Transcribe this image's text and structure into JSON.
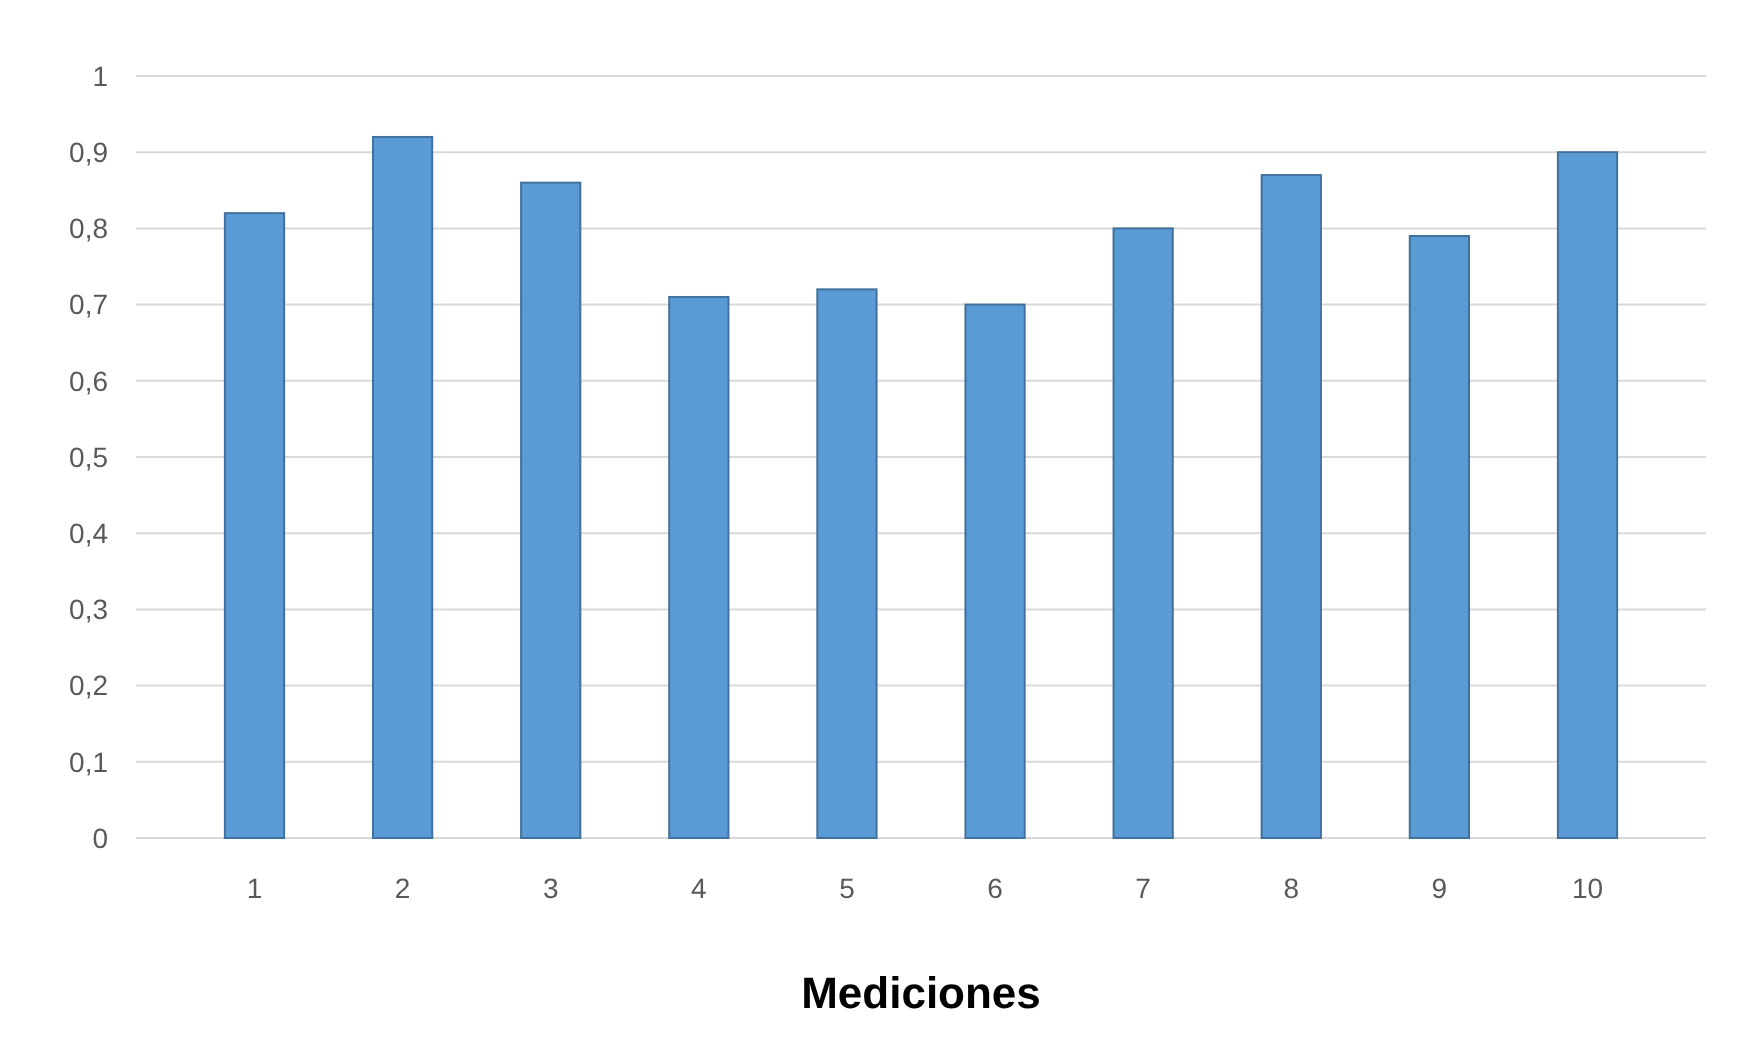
{
  "chart_data": {
    "type": "bar",
    "xlabel": "Mediciones",
    "categories": [
      "1",
      "2",
      "3",
      "4",
      "5",
      "6",
      "7",
      "8",
      "9",
      "10"
    ],
    "values": [
      0.82,
      0.92,
      0.86,
      0.71,
      0.72,
      0.7,
      0.8,
      0.87,
      0.79,
      0.9
    ],
    "color": "#5b9bd5",
    "ylim": [
      0,
      1
    ],
    "yticks": [
      0,
      {
        "value": 0.1,
        "label": "0,1"
      },
      {
        "value": 0.2,
        "label": "0,2"
      },
      {
        "value": 0.3,
        "label": "0,3"
      },
      {
        "value": 0.4,
        "label": "0,4"
      },
      {
        "value": 0.5,
        "label": "0,5"
      },
      {
        "value": 0.6,
        "label": "0,6"
      },
      {
        "value": 0.7,
        "label": "0,7"
      },
      {
        "value": 0.8,
        "label": "0,8"
      },
      {
        "value": 0.9,
        "label": "0,9"
      },
      1
    ],
    "grid": true
  }
}
